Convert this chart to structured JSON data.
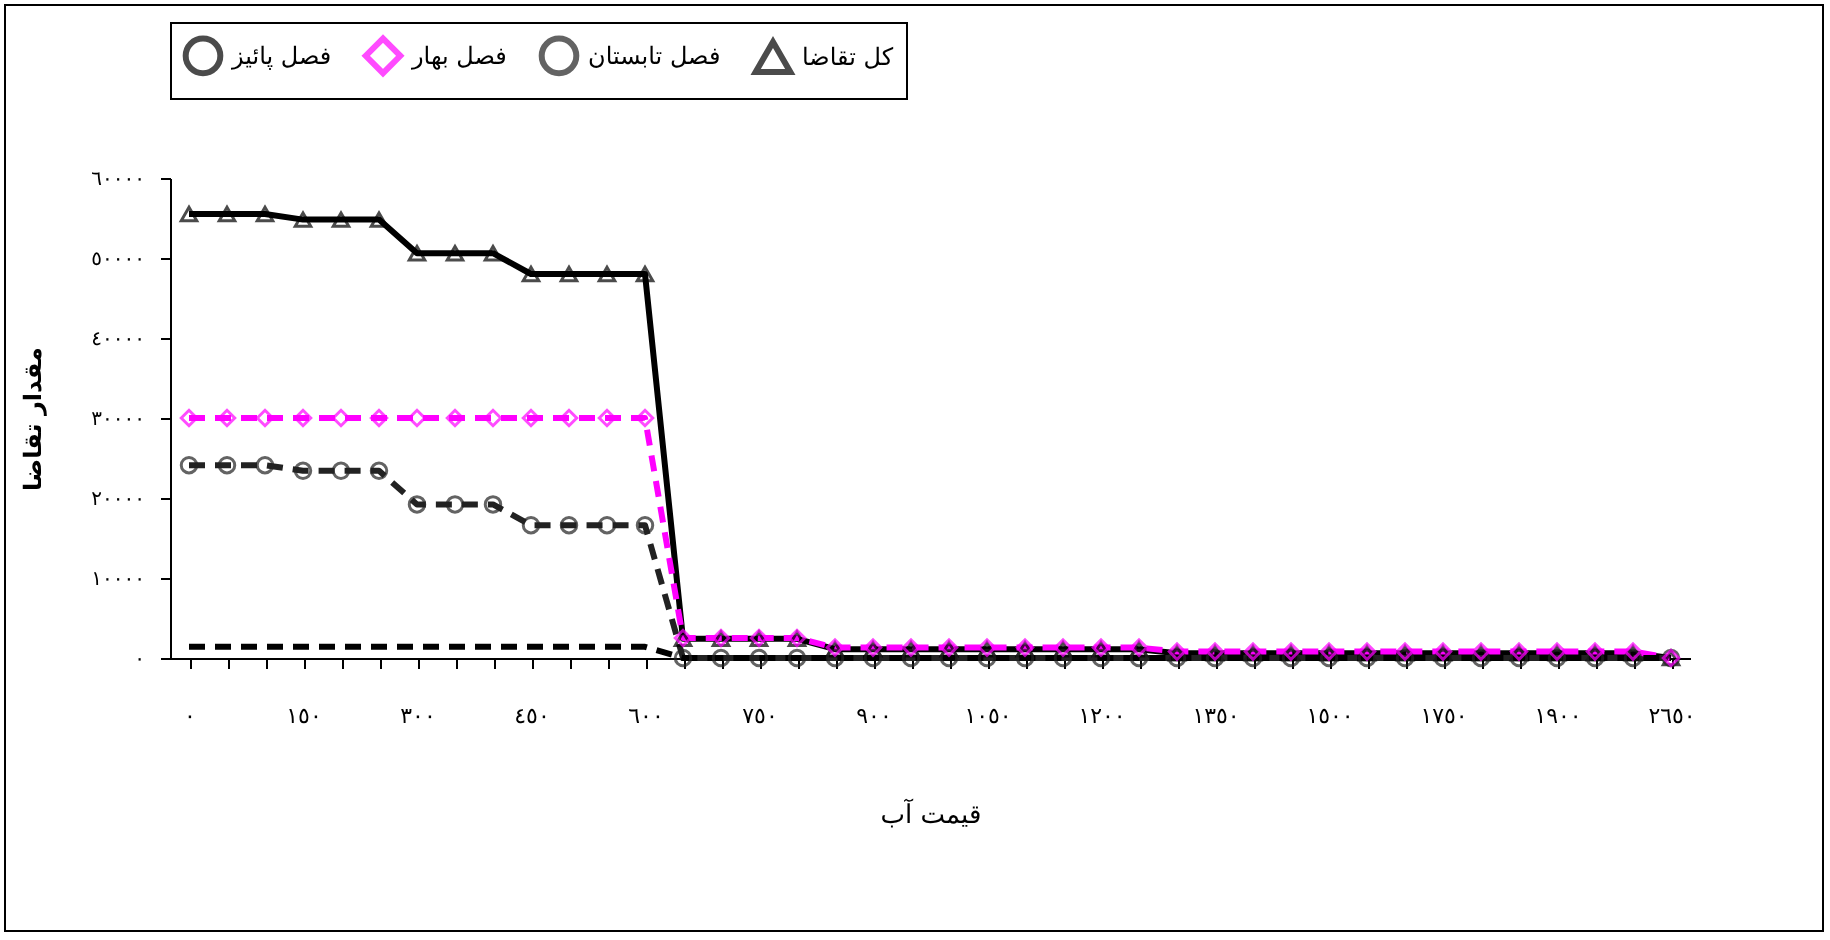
{
  "chart_data": {
    "type": "line",
    "xlabel": "قيمت آب",
    "ylabel": "مقدار تقاضا",
    "categories": [
      "٠",
      null,
      null,
      "١٥٠",
      null,
      null,
      "٣٠٠",
      null,
      null,
      "٤٥٠",
      null,
      null,
      "٦٠٠",
      null,
      null,
      "٧٥٠",
      null,
      null,
      "٩٠٠",
      null,
      null,
      "١٠٥٠",
      null,
      null,
      "١٢٠٠",
      null,
      null,
      "١٣٥٠",
      null,
      null,
      "١٥٠٠",
      null,
      null,
      "١٧٥٠",
      null,
      null,
      "١٩٠٠",
      null,
      null,
      "٢٦٥٠"
    ],
    "series": [
      {
        "name": "کل تقاضا",
        "color": "#000000",
        "marker": "triangle",
        "line_style": "solid",
        "values": [
          55500,
          55500,
          55500,
          54800,
          54800,
          54800,
          50600,
          50600,
          50600,
          48000,
          48000,
          48000,
          48000,
          2400,
          2400,
          2400,
          2400,
          1100,
          1100,
          1100,
          1100,
          1100,
          1100,
          1100,
          1100,
          1100,
          600,
          600,
          600,
          600,
          600,
          600,
          600,
          600,
          600,
          600,
          600,
          600,
          600,
          0
        ]
      },
      {
        "name": "فصل تابستان",
        "color": "#222222",
        "marker": "circle",
        "line_style": "dashed",
        "values": [
          24100,
          24100,
          24100,
          23400,
          23400,
          23400,
          19200,
          19200,
          19200,
          16600,
          16600,
          16600,
          16600,
          0,
          0,
          0,
          0,
          0,
          0,
          0,
          0,
          0,
          0,
          0,
          0,
          0,
          0,
          0,
          0,
          0,
          0,
          0,
          0,
          0,
          0,
          0,
          0,
          0,
          0,
          0
        ]
      },
      {
        "name": "فصل بهار",
        "color": "#ff00ff",
        "marker": "diamond",
        "line_style": "dashed",
        "values": [
          30000,
          30000,
          30000,
          30000,
          30000,
          30000,
          30000,
          30000,
          30000,
          30000,
          30000,
          30000,
          30000,
          2500,
          2500,
          2500,
          2500,
          1300,
          1300,
          1300,
          1300,
          1300,
          1300,
          1300,
          1300,
          1300,
          800,
          800,
          800,
          800,
          800,
          800,
          800,
          800,
          800,
          800,
          800,
          800,
          800,
          0
        ]
      },
      {
        "name": "فصل پائیز",
        "color": "#000000",
        "marker": "none",
        "line_style": "dashed",
        "values": [
          1400,
          1400,
          1400,
          1400,
          1400,
          1400,
          1400,
          1400,
          1400,
          1400,
          1400,
          1400,
          1400,
          0,
          0,
          0,
          0,
          0,
          0,
          0,
          0,
          0,
          0,
          0,
          0,
          0,
          0,
          0,
          0,
          0,
          0,
          0,
          0,
          0,
          0,
          0,
          0,
          0,
          0,
          0
        ]
      }
    ],
    "ylim": [
      0,
      60000
    ],
    "yticks": [
      {
        "value": 0,
        "label": "٠"
      },
      {
        "value": 10000,
        "label": "١٠٠٠٠"
      },
      {
        "value": 20000,
        "label": "٢٠٠٠٠"
      },
      {
        "value": 30000,
        "label": "٣٠٠٠٠"
      },
      {
        "value": 40000,
        "label": "٤٠٠٠٠"
      },
      {
        "value": 50000,
        "label": "٥٠٠٠٠"
      },
      {
        "value": 60000,
        "label": "٦٠٠٠٠"
      }
    ],
    "grid": false,
    "legend": "top"
  }
}
